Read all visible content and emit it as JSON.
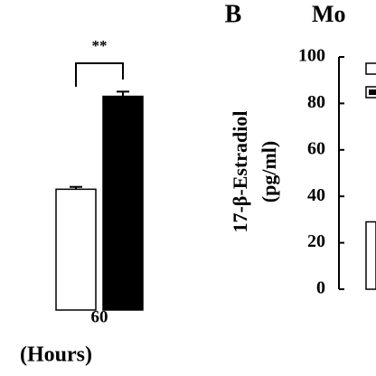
{
  "chart_data": [
    {
      "type": "bar",
      "x_label": "(Hours)",
      "annotation": "**",
      "categories": [
        "60"
      ],
      "series": [
        {
          "color": "#ffffff",
          "values": [
            52
          ],
          "errors": [
            1
          ]
        },
        {
          "color": "#000000",
          "values": [
            92
          ],
          "errors": [
            2
          ]
        }
      ],
      "ylim": [
        0,
        100
      ]
    },
    {
      "type": "bar",
      "panel_label": "B",
      "title": "Mo",
      "y_label": [
        "17-β-Estradiol",
        "(pg/ml)"
      ],
      "categories": [
        null
      ],
      "series": [
        {
          "color": "#ffffff",
          "values": [
            29
          ]
        }
      ],
      "ylim": [
        0,
        100
      ],
      "yticks": [
        0,
        20,
        40,
        60,
        80,
        100
      ]
    }
  ]
}
